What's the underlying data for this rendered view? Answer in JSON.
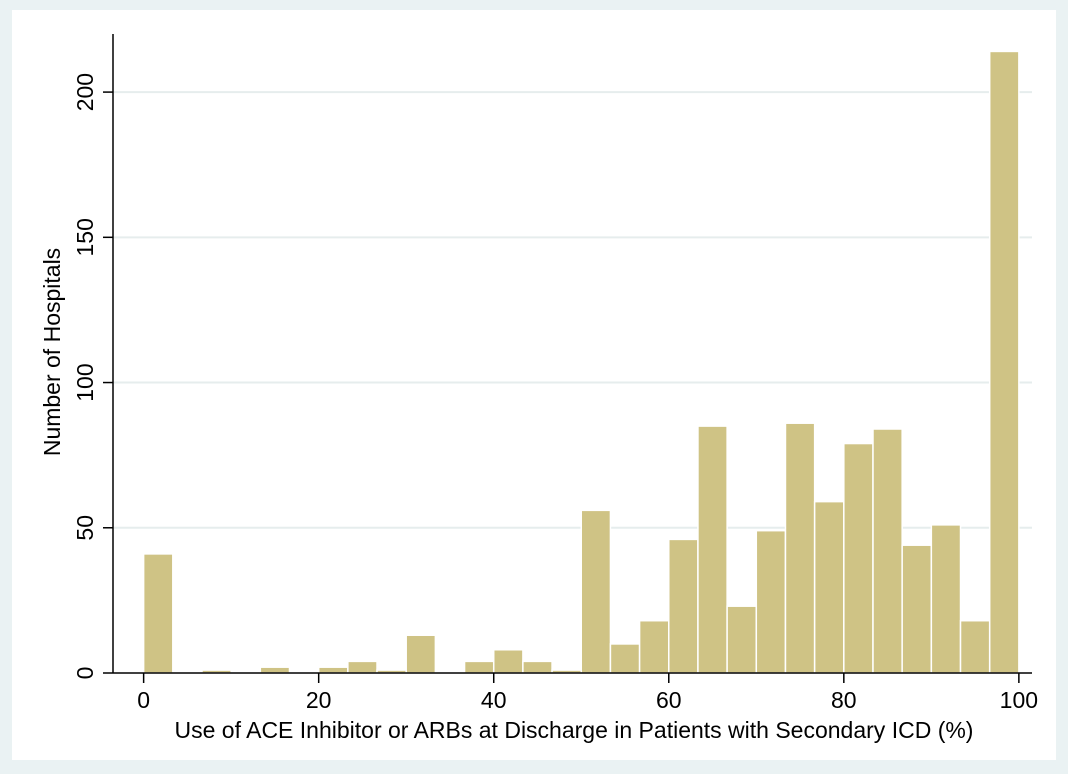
{
  "chart_data": {
    "type": "bar",
    "xlabel": "Use of ACE Inhibitor or ARBs at Discharge in Patients with Secondary ICD (%)",
    "ylabel": "Number of Hospitals",
    "xlim": [
      -3.5,
      101.5
    ],
    "ylim": [
      0,
      220
    ],
    "xticks": [
      0,
      20,
      40,
      60,
      80,
      100
    ],
    "yticks": [
      0,
      50,
      100,
      150,
      200
    ],
    "grid": true,
    "bin_width": 3.333,
    "bins": [
      {
        "x0": 0.0,
        "value": 41
      },
      {
        "x0": 3.333,
        "value": 0
      },
      {
        "x0": 6.667,
        "value": 1
      },
      {
        "x0": 10.0,
        "value": 0
      },
      {
        "x0": 13.333,
        "value": 2
      },
      {
        "x0": 16.667,
        "value": 0
      },
      {
        "x0": 20.0,
        "value": 2
      },
      {
        "x0": 23.333,
        "value": 4
      },
      {
        "x0": 26.667,
        "value": 1
      },
      {
        "x0": 30.0,
        "value": 13
      },
      {
        "x0": 33.333,
        "value": 0
      },
      {
        "x0": 36.667,
        "value": 4
      },
      {
        "x0": 40.0,
        "value": 8
      },
      {
        "x0": 43.333,
        "value": 4
      },
      {
        "x0": 46.667,
        "value": 1
      },
      {
        "x0": 50.0,
        "value": 56
      },
      {
        "x0": 53.333,
        "value": 10
      },
      {
        "x0": 56.667,
        "value": 18
      },
      {
        "x0": 60.0,
        "value": 46
      },
      {
        "x0": 63.333,
        "value": 85
      },
      {
        "x0": 66.667,
        "value": 23
      },
      {
        "x0": 70.0,
        "value": 49
      },
      {
        "x0": 73.333,
        "value": 86
      },
      {
        "x0": 76.667,
        "value": 59
      },
      {
        "x0": 80.0,
        "value": 79
      },
      {
        "x0": 83.333,
        "value": 84
      },
      {
        "x0": 86.667,
        "value": 44
      },
      {
        "x0": 90.0,
        "value": 51
      },
      {
        "x0": 93.333,
        "value": 18
      },
      {
        "x0": 96.667,
        "value": 214
      }
    ]
  },
  "colors": {
    "page_background": "#eaf2f3",
    "plot_background": "#ffffff",
    "bar_fill": "#cfc385",
    "bar_stroke": "#ffffff",
    "grid": "#e6eded",
    "axis": "#000000"
  }
}
